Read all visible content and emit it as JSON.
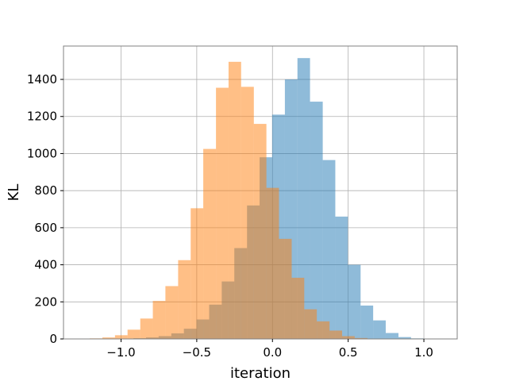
{
  "chart_data": {
    "type": "histogram",
    "title": "",
    "xlabel": "iteration",
    "ylabel": "KL",
    "xlim": [
      -1.38,
      1.22
    ],
    "ylim": [
      0,
      1580
    ],
    "grid": true,
    "legend": "none",
    "x_ticks": [
      -1.0,
      -0.5,
      0.0,
      0.5,
      1.0
    ],
    "x_tick_labels": [
      "−1.0",
      "−0.5",
      "0.0",
      "0.5",
      "1.0"
    ],
    "y_ticks": [
      0,
      200,
      400,
      600,
      800,
      1000,
      1200,
      1400
    ],
    "y_tick_labels": [
      "0",
      "200",
      "400",
      "600",
      "800",
      "1000",
      "1200",
      "1400"
    ],
    "series": [
      {
        "color": "#1f77b4",
        "alpha": 0.5,
        "bin_edges": [
          -1.085,
          -1.002,
          -0.918,
          -0.835,
          -0.752,
          -0.668,
          -0.585,
          -0.502,
          -0.418,
          -0.335,
          -0.252,
          -0.168,
          -0.085,
          -0.002,
          0.082,
          0.165,
          0.248,
          0.332,
          0.415,
          0.498,
          0.582,
          0.665,
          0.748,
          0.832,
          0.915,
          0.998,
          1.082
        ],
        "counts": [
          1,
          2,
          4,
          8,
          15,
          30,
          55,
          105,
          185,
          310,
          490,
          720,
          980,
          1210,
          1400,
          1515,
          1280,
          965,
          660,
          400,
          180,
          100,
          32,
          10,
          3,
          2
        ]
      },
      {
        "color": "#ff7f0e",
        "alpha": 0.5,
        "bin_edges": [
          -1.29,
          -1.207,
          -1.123,
          -1.04,
          -0.957,
          -0.873,
          -0.79,
          -0.707,
          -0.623,
          -0.54,
          -0.457,
          -0.373,
          -0.29,
          -0.207,
          -0.123,
          -0.04,
          0.043,
          0.127,
          0.21,
          0.293,
          0.377,
          0.46,
          0.543,
          0.627
        ],
        "counts": [
          1,
          3,
          8,
          20,
          50,
          110,
          205,
          285,
          425,
          705,
          1025,
          1355,
          1495,
          1360,
          1160,
          815,
          540,
          330,
          160,
          95,
          45,
          15,
          5
        ]
      }
    ]
  }
}
